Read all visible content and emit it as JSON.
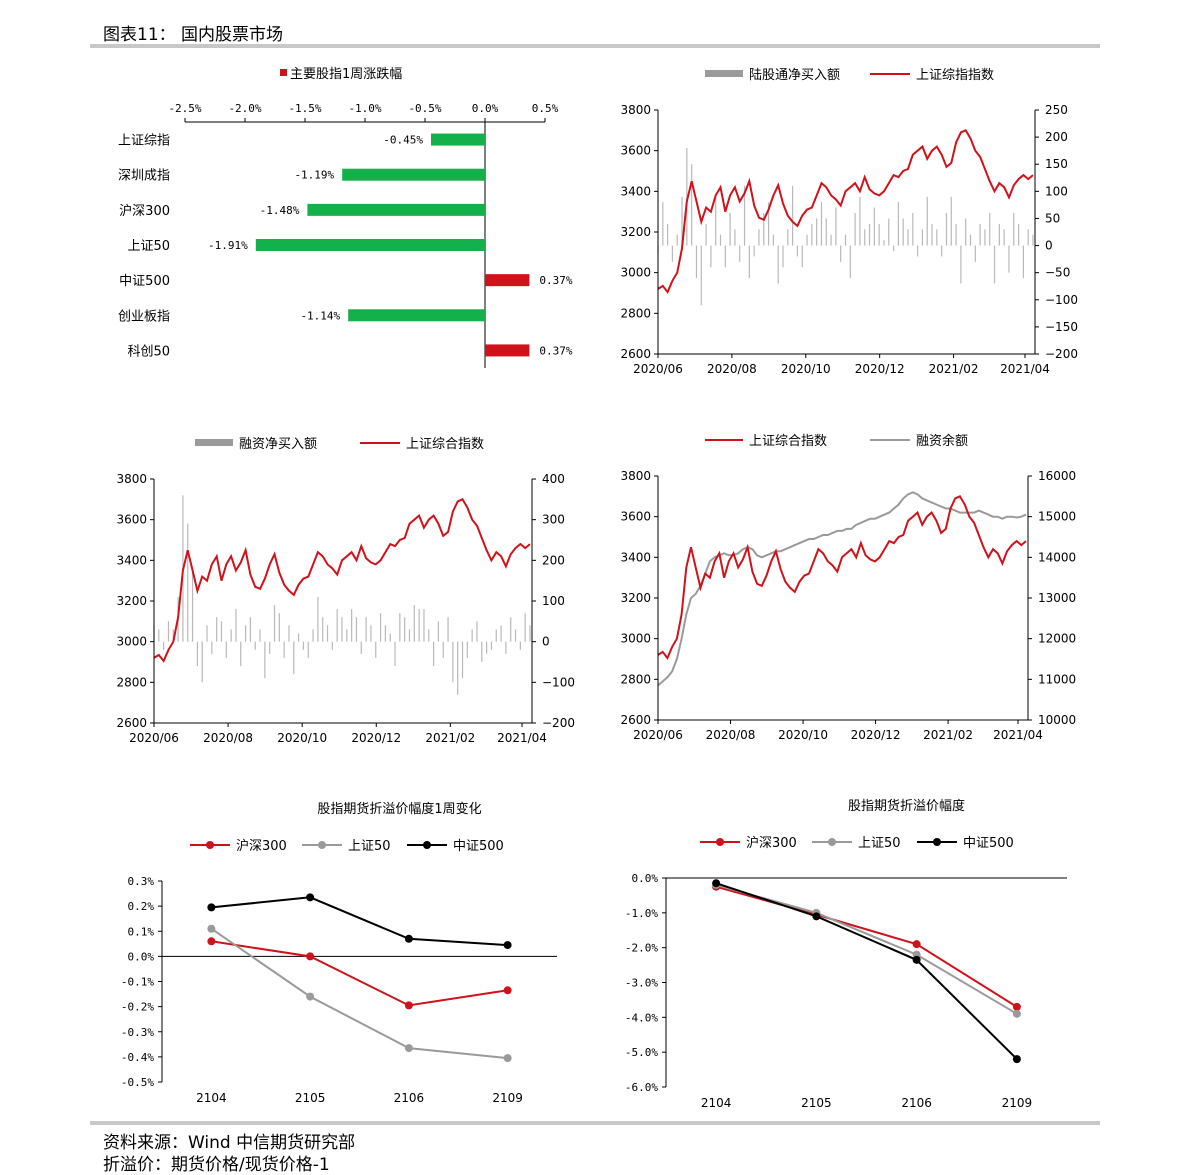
{
  "figure_title": "图表11： 国内股票市场",
  "footer": {
    "source": "资料来源：Wind 中信期货研究部",
    "note": "折溢价：期货价格/现货价格-1"
  },
  "colors": {
    "red": "#d0121b",
    "green": "#14b04a",
    "gray": "#9a9a9a",
    "black": "#000000"
  },
  "chart_data": [
    {
      "id": "weekly",
      "type": "bar",
      "orientation": "horizontal",
      "legend": "主要股指1周涨跌幅",
      "categories": [
        "上证综指",
        "深圳成指",
        "沪深300",
        "上证50",
        "中证500",
        "创业板指",
        "科创50"
      ],
      "values": [
        -0.45,
        -1.19,
        -1.48,
        -1.91,
        0.37,
        -1.14,
        0.37
      ],
      "value_labels": [
        "-0.45%",
        "-1.19%",
        "-1.48%",
        "-1.91%",
        "0.37%",
        "-1.14%",
        "0.37%"
      ],
      "xlim": [
        -2.5,
        0.5
      ],
      "x_ticks": [
        -2.5,
        -2.0,
        -1.5,
        -1.0,
        -0.5,
        0.0,
        0.5
      ],
      "x_tick_labels": [
        "-2.5%",
        "-2.0%",
        "-1.5%",
        "-1.0%",
        "-0.5%",
        "0.0%",
        "0.5%"
      ]
    },
    {
      "id": "northbound",
      "type": "bar+line",
      "legend": [
        "陆股通净买入额",
        "上证综指指数"
      ],
      "x_tick_labels": [
        "2020/06",
        "2020/08",
        "2020/10",
        "2020/12",
        "2021/02",
        "2021/04"
      ],
      "y_left_ticks": [
        "3800",
        "3600",
        "3400",
        "3200",
        "3000",
        "2800",
        "2600"
      ],
      "y_right_ticks": [
        "250",
        "200",
        "150",
        "100",
        "50",
        "0",
        "−50",
        "−100",
        "−150",
        "−200"
      ],
      "ylim_left": [
        2600,
        3800
      ],
      "ylim_right": [
        -200,
        250
      ],
      "index_series": [
        2920,
        2935,
        2905,
        2960,
        3000,
        3120,
        3350,
        3450,
        3350,
        3250,
        3320,
        3300,
        3380,
        3420,
        3300,
        3380,
        3420,
        3350,
        3390,
        3450,
        3330,
        3270,
        3260,
        3310,
        3380,
        3430,
        3340,
        3280,
        3250,
        3230,
        3280,
        3310,
        3320,
        3380,
        3440,
        3420,
        3380,
        3360,
        3330,
        3400,
        3420,
        3440,
        3400,
        3470,
        3410,
        3390,
        3380,
        3400,
        3440,
        3480,
        3470,
        3500,
        3510,
        3580,
        3600,
        3620,
        3560,
        3600,
        3620,
        3580,
        3520,
        3540,
        3640,
        3690,
        3700,
        3660,
        3600,
        3570,
        3510,
        3450,
        3400,
        3440,
        3420,
        3370,
        3430,
        3460,
        3480,
        3460,
        3480
      ],
      "flow_series": [
        -15,
        80,
        40,
        -30,
        20,
        90,
        180,
        150,
        -60,
        -110,
        40,
        -40,
        90,
        20,
        -40,
        60,
        30,
        -30,
        110,
        -60,
        -20,
        30,
        60,
        80,
        20,
        -70,
        -40,
        30,
        110,
        -20,
        -40,
        20,
        40,
        50,
        80,
        50,
        20,
        70,
        -30,
        20,
        -60,
        60,
        90,
        30,
        40,
        70,
        40,
        10,
        50,
        -10,
        80,
        50,
        30,
        60,
        -20,
        30,
        90,
        40,
        30,
        -20,
        60,
        90,
        40,
        -70,
        50,
        20,
        -30,
        40,
        30,
        60,
        -70,
        40,
        30,
        -50,
        60,
        40,
        -60,
        30,
        20
      ]
    },
    {
      "id": "margin_buy",
      "type": "bar+line",
      "legend": [
        "融资净买入额",
        "上证综合指数"
      ],
      "x_tick_labels": [
        "2020/06",
        "2020/08",
        "2020/10",
        "2020/12",
        "2021/02",
        "2021/04"
      ],
      "y_left_ticks": [
        "3800",
        "3600",
        "3400",
        "3200",
        "3000",
        "2800",
        "2600"
      ],
      "y_right_ticks": [
        "400",
        "300",
        "200",
        "100",
        "0",
        "−100",
        "−200"
      ],
      "ylim_left": [
        2600,
        3800
      ],
      "ylim_right": [
        -200,
        400
      ],
      "index_series": [
        2920,
        2935,
        2905,
        2960,
        3000,
        3120,
        3350,
        3450,
        3350,
        3250,
        3320,
        3300,
        3380,
        3420,
        3300,
        3380,
        3420,
        3350,
        3390,
        3450,
        3330,
        3270,
        3260,
        3310,
        3380,
        3430,
        3340,
        3280,
        3250,
        3230,
        3280,
        3310,
        3320,
        3380,
        3440,
        3420,
        3380,
        3360,
        3330,
        3400,
        3420,
        3440,
        3400,
        3470,
        3410,
        3390,
        3380,
        3400,
        3440,
        3480,
        3470,
        3500,
        3510,
        3580,
        3600,
        3620,
        3560,
        3600,
        3620,
        3580,
        3520,
        3540,
        3640,
        3690,
        3700,
        3660,
        3600,
        3570,
        3510,
        3450,
        3400,
        3440,
        3420,
        3370,
        3430,
        3460,
        3480,
        3460,
        3480
      ],
      "flow_series": [
        40,
        30,
        -20,
        50,
        30,
        110,
        360,
        290,
        180,
        -60,
        -100,
        40,
        -30,
        60,
        50,
        -40,
        30,
        80,
        -60,
        40,
        60,
        -20,
        30,
        -90,
        -30,
        90,
        70,
        -40,
        40,
        -80,
        20,
        -20,
        -40,
        30,
        110,
        60,
        40,
        -20,
        80,
        60,
        30,
        80,
        60,
        -30,
        60,
        40,
        -40,
        70,
        40,
        20,
        -60,
        70,
        60,
        30,
        90,
        80,
        80,
        30,
        -60,
        50,
        -40,
        60,
        -100,
        -130,
        -90,
        -40,
        30,
        50,
        -50,
        -30,
        -20,
        30,
        40,
        -30,
        60,
        30,
        -20,
        70,
        40
      ]
    },
    {
      "id": "margin_balance",
      "type": "line",
      "legend": [
        "上证综合指数",
        "融资余额"
      ],
      "x_tick_labels": [
        "2020/06",
        "2020/08",
        "2020/10",
        "2020/12",
        "2021/02",
        "2021/04"
      ],
      "y_left_ticks": [
        "3800",
        "3600",
        "3400",
        "3200",
        "3000",
        "2800",
        "2600"
      ],
      "y_right_ticks": [
        "16000",
        "15000",
        "14000",
        "13000",
        "12000",
        "11000",
        "10000"
      ],
      "ylim_left": [
        2600,
        3800
      ],
      "ylim_right": [
        10000,
        16000
      ],
      "index_series": [
        2920,
        2935,
        2905,
        2960,
        3000,
        3120,
        3350,
        3450,
        3350,
        3250,
        3320,
        3300,
        3380,
        3420,
        3300,
        3380,
        3420,
        3350,
        3390,
        3450,
        3330,
        3270,
        3260,
        3310,
        3380,
        3430,
        3340,
        3280,
        3250,
        3230,
        3280,
        3310,
        3320,
        3380,
        3440,
        3420,
        3380,
        3360,
        3330,
        3400,
        3420,
        3440,
        3400,
        3470,
        3410,
        3390,
        3380,
        3400,
        3440,
        3480,
        3470,
        3500,
        3510,
        3580,
        3600,
        3620,
        3560,
        3600,
        3620,
        3580,
        3520,
        3540,
        3640,
        3690,
        3700,
        3660,
        3600,
        3570,
        3510,
        3450,
        3400,
        3440,
        3420,
        3370,
        3430,
        3460,
        3480,
        3460,
        3480
      ],
      "balance_series": [
        10850,
        10950,
        11050,
        11200,
        11500,
        12000,
        12600,
        13000,
        13100,
        13300,
        13600,
        13900,
        14000,
        14050,
        14100,
        14050,
        14050,
        14100,
        14200,
        14250,
        14200,
        14050,
        14000,
        14050,
        14100,
        14150,
        14150,
        14200,
        14250,
        14300,
        14350,
        14400,
        14450,
        14450,
        14500,
        14550,
        14550,
        14600,
        14650,
        14650,
        14700,
        14700,
        14800,
        14850,
        14900,
        14950,
        14950,
        15000,
        15050,
        15100,
        15200,
        15300,
        15450,
        15550,
        15600,
        15550,
        15450,
        15400,
        15350,
        15300,
        15250,
        15200,
        15200,
        15150,
        15100,
        15100,
        15100,
        15100,
        15150,
        15100,
        15050,
        15000,
        15000,
        14950,
        15000,
        15000,
        14980,
        15000,
        15050
      ]
    },
    {
      "id": "basis_change",
      "type": "line",
      "title": "股指期货折溢价幅度1周变化",
      "categories": [
        "2104",
        "2105",
        "2106",
        "2109"
      ],
      "series": [
        {
          "name": "沪深300",
          "color": "#d0121b",
          "values": [
            0.06,
            0.0,
            -0.195,
            -0.135
          ]
        },
        {
          "name": "上证50",
          "color": "#9a9a9a",
          "values": [
            0.11,
            -0.16,
            -0.365,
            -0.405
          ]
        },
        {
          "name": "中证500",
          "color": "#000000",
          "values": [
            0.195,
            0.235,
            0.07,
            0.045
          ]
        }
      ],
      "ylim": [
        -0.5,
        0.3
      ],
      "y_ticks": [
        "0.3%",
        "0.2%",
        "0.1%",
        "0.0%",
        "-0.1%",
        "-0.2%",
        "-0.3%",
        "-0.4%",
        "-0.5%"
      ]
    },
    {
      "id": "basis_level",
      "type": "line",
      "title": "股指期货折溢价幅度",
      "categories": [
        "2104",
        "2105",
        "2106",
        "2109"
      ],
      "series": [
        {
          "name": "沪深300",
          "color": "#d0121b",
          "values": [
            -0.25,
            -1.05,
            -1.9,
            -3.7
          ]
        },
        {
          "name": "上证50",
          "color": "#9a9a9a",
          "values": [
            -0.2,
            -1.0,
            -2.2,
            -3.9
          ]
        },
        {
          "name": "中证500",
          "color": "#000000",
          "values": [
            -0.15,
            -1.1,
            -2.35,
            -5.2
          ]
        }
      ],
      "ylim": [
        -6,
        0
      ],
      "y_ticks": [
        "0.0%",
        "-1.0%",
        "-2.0%",
        "-3.0%",
        "-4.0%",
        "-5.0%",
        "-6.0%"
      ]
    }
  ]
}
